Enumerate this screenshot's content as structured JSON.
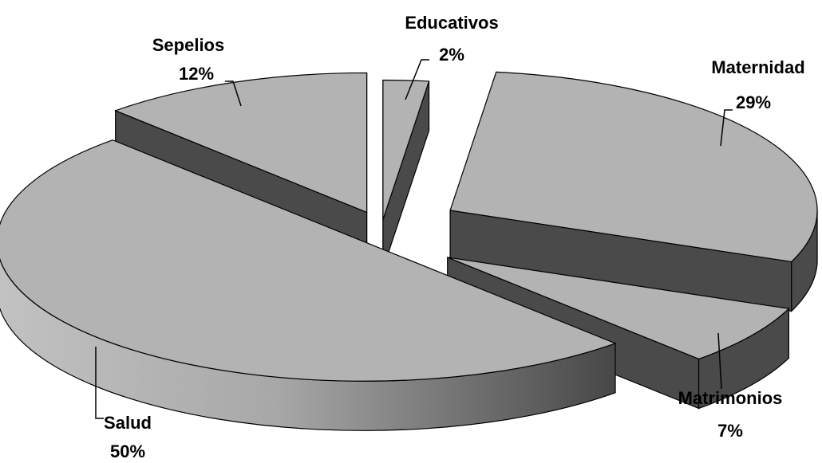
{
  "chart_data": {
    "type": "pie",
    "style": "3d-exploded",
    "categories": [
      "Salud",
      "Sepelios",
      "Educativos",
      "Maternidad",
      "Matrimonios"
    ],
    "values": [
      50,
      12,
      2,
      29,
      7
    ],
    "labels": [
      {
        "category": "Salud",
        "value_text": "50%"
      },
      {
        "category": "Sepelios",
        "value_text": "12%"
      },
      {
        "category": "Educativos",
        "value_text": "2%"
      },
      {
        "category": "Maternidad",
        "value_text": "29%"
      },
      {
        "category": "Matrimonios",
        "value_text": "7%"
      }
    ],
    "legend": "none",
    "colors": {
      "top": "#b3b3b3",
      "side_dark": "#4a4a4a",
      "side_light": "#c0c0c0",
      "outline": "#000000"
    }
  }
}
